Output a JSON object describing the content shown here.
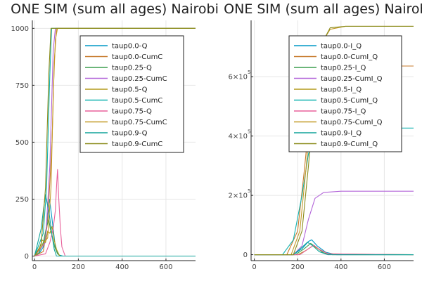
{
  "chart_data": [
    {
      "type": "line",
      "title": "ONE SIM (sum all ages) Nairobi",
      "xlabel": "",
      "ylabel": "",
      "xlim": [
        -10,
        735
      ],
      "ylim": [
        -20,
        1035
      ],
      "xticks": [
        0,
        200,
        400,
        600
      ],
      "xtick_labels": [
        "0",
        "200",
        "400",
        "600"
      ],
      "yticks": [
        0,
        250,
        500,
        750,
        1000
      ],
      "ytick_labels": [
        "0",
        "250",
        "500",
        "750",
        "1000"
      ],
      "grid": true,
      "legend_position": "top-right",
      "series": [
        {
          "name": "taup0.0-Q",
          "color": "#0099c6",
          "x": [
            0,
            20,
            40,
            50,
            60,
            68,
            75,
            85,
            95,
            110,
            130,
            735
          ],
          "y": [
            0,
            10,
            40,
            90,
            180,
            250,
            200,
            120,
            40,
            5,
            0,
            0
          ]
        },
        {
          "name": "taup0.0-CumC",
          "color": "#c77a2b",
          "x": [
            0,
            40,
            60,
            80,
            90,
            100,
            110,
            735
          ],
          "y": [
            0,
            20,
            150,
            500,
            850,
            1000,
            1000,
            1000
          ]
        },
        {
          "name": "taup0.25-Q",
          "color": "#3b9e4f",
          "x": [
            0,
            20,
            40,
            55,
            65,
            72,
            80,
            92,
            105,
            120,
            735
          ],
          "y": [
            0,
            15,
            60,
            130,
            160,
            120,
            90,
            40,
            10,
            0,
            0
          ]
        },
        {
          "name": "taup0.25-CumC",
          "color": "#b366d9",
          "x": [
            0,
            50,
            70,
            85,
            95,
            735
          ],
          "y": [
            0,
            60,
            400,
            900,
            1000,
            1000
          ]
        },
        {
          "name": "taup0.5-Q",
          "color": "#b39a1a",
          "x": [
            0,
            20,
            35,
            50,
            60,
            70,
            80,
            90,
            100,
            115,
            735
          ],
          "y": [
            0,
            30,
            70,
            60,
            110,
            100,
            130,
            70,
            30,
            0,
            0
          ]
        },
        {
          "name": "taup0.5-CumC",
          "color": "#13b2b0",
          "x": [
            0,
            40,
            55,
            70,
            78,
            85,
            735
          ],
          "y": [
            0,
            100,
            300,
            800,
            1000,
            1000,
            1000
          ]
        },
        {
          "name": "taup0.75-Q",
          "color": "#e8609a",
          "x": [
            0,
            50,
            70,
            85,
            95,
            100,
            105,
            110,
            118,
            125,
            140,
            735
          ],
          "y": [
            0,
            10,
            60,
            120,
            200,
            300,
            380,
            260,
            120,
            40,
            0,
            0
          ]
        },
        {
          "name": "taup0.75-CumC",
          "color": "#c39a28",
          "x": [
            0,
            60,
            75,
            85,
            95,
            105,
            735
          ],
          "y": [
            0,
            80,
            300,
            700,
            950,
            1000,
            1000
          ]
        },
        {
          "name": "taup0.9-Q",
          "color": "#10a39a",
          "x": [
            0,
            15,
            30,
            40,
            50,
            58,
            65,
            72,
            80,
            90,
            100,
            735
          ],
          "y": [
            0,
            60,
            120,
            200,
            270,
            230,
            200,
            150,
            90,
            30,
            0,
            0
          ]
        },
        {
          "name": "taup0.9-CumC",
          "color": "#8a8b1a",
          "x": [
            0,
            30,
            50,
            65,
            75,
            735
          ],
          "y": [
            0,
            50,
            300,
            800,
            1000,
            1000
          ]
        }
      ]
    },
    {
      "type": "line",
      "title": "ONE SIM (sum all ages) Nairobi",
      "xlabel": "",
      "ylabel": "",
      "xlim": [
        -15,
        735
      ],
      "ylim": [
        -20000,
        790000
      ],
      "xticks": [
        0,
        200,
        400,
        600
      ],
      "xtick_labels": [
        "0",
        "200",
        "400",
        "600"
      ],
      "yticks": [
        0,
        200000,
        400000,
        600000
      ],
      "ytick_labels": [
        "0",
        "2×10",
        "4×10",
        "6×10"
      ],
      "ytick_exponent": "5",
      "grid": true,
      "legend_position": "top-right",
      "series": [
        {
          "name": "taup0.0-I_Q",
          "color": "#0099c6",
          "x": [
            0,
            180,
            220,
            250,
            265,
            290,
            330,
            380,
            735
          ],
          "y": [
            0,
            0,
            20000,
            45000,
            50000,
            30000,
            8000,
            0,
            0
          ]
        },
        {
          "name": "taup0.0-CumI_Q",
          "color": "#c77a2b",
          "x": [
            0,
            150,
            200,
            230,
            260,
            290,
            320,
            370,
            735
          ],
          "y": [
            0,
            0,
            80000,
            280000,
            500000,
            600000,
            630000,
            636000,
            636000
          ]
        },
        {
          "name": "taup0.25-I_Q",
          "color": "#3b9e4f",
          "x": [
            0,
            190,
            230,
            260,
            285,
            320,
            360,
            735
          ],
          "y": [
            0,
            0,
            20000,
            38000,
            25000,
            6000,
            0,
            0
          ]
        },
        {
          "name": "taup0.25-CumI_Q",
          "color": "#b366d9",
          "x": [
            0,
            180,
            220,
            250,
            280,
            320,
            400,
            735
          ],
          "y": [
            0,
            0,
            30000,
            120000,
            190000,
            210000,
            214000,
            214000
          ]
        },
        {
          "name": "taup0.5-I_Q",
          "color": "#b39a1a",
          "x": [
            0,
            200,
            240,
            270,
            300,
            340,
            735
          ],
          "y": [
            0,
            0,
            15000,
            30000,
            18000,
            3000,
            0
          ]
        },
        {
          "name": "taup0.5-CumI_Q",
          "color": "#13b2b0",
          "x": [
            0,
            130,
            180,
            220,
            250,
            280,
            320,
            380,
            735
          ],
          "y": [
            0,
            0,
            50000,
            200000,
            340000,
            400000,
            420000,
            427000,
            427000
          ]
        },
        {
          "name": "taup0.75-I_Q",
          "color": "#e8609a",
          "x": [
            0,
            210,
            250,
            275,
            300,
            340,
            735
          ],
          "y": [
            0,
            0,
            20000,
            32000,
            18000,
            3000,
            0
          ]
        },
        {
          "name": "taup0.75-CumI_Q",
          "color": "#c39a28",
          "x": [
            0,
            170,
            210,
            240,
            270,
            300,
            350,
            420,
            735
          ],
          "y": [
            0,
            0,
            80000,
            300000,
            550000,
            700000,
            760000,
            770000,
            770000
          ]
        },
        {
          "name": "taup0.9-I_Q",
          "color": "#10a39a",
          "x": [
            0,
            180,
            220,
            245,
            270,
            300,
            340,
            735
          ],
          "y": [
            0,
            0,
            25000,
            42000,
            30000,
            10000,
            0,
            0
          ]
        },
        {
          "name": "taup0.9-CumI_Q",
          "color": "#8a8b1a",
          "x": [
            0,
            180,
            220,
            250,
            280,
            310,
            350,
            420,
            735
          ],
          "y": [
            0,
            0,
            80000,
            300000,
            560000,
            710000,
            765000,
            770000,
            770000
          ]
        }
      ]
    }
  ]
}
